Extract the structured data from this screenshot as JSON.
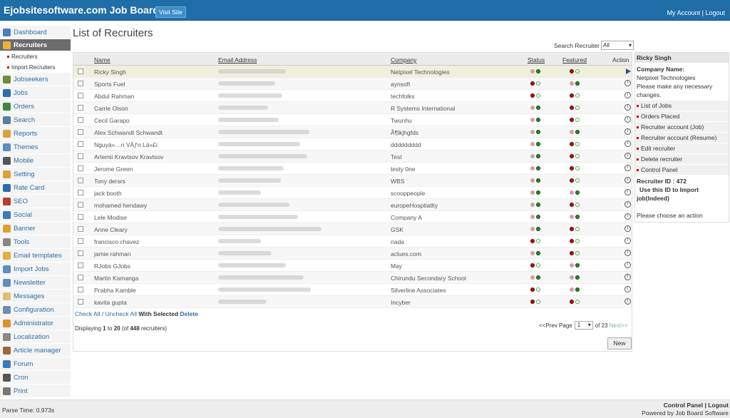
{
  "header": {
    "site_title": "Ejobsitesoftware.com Job Board",
    "visit_site": "Visit Site",
    "my_account": "My Account",
    "separator": "|",
    "logout": "Logout"
  },
  "sidebar": {
    "items": [
      {
        "label": "Dashboard",
        "icon": "home-icon",
        "color": "#4a7fbf"
      },
      {
        "label": "Recruiters",
        "icon": "recruiters-icon",
        "color": "#e8b23c",
        "active": true
      },
      {
        "label": "Jobseekers",
        "icon": "jobseekers-icon",
        "color": "#6b8e3a"
      },
      {
        "label": "Jobs",
        "icon": "jobs-icon",
        "color": "#2c6ea8"
      },
      {
        "label": "Orders",
        "icon": "orders-icon",
        "color": "#3b8a3b"
      },
      {
        "label": "Search",
        "icon": "search-icon",
        "color": "#5a7ea0"
      },
      {
        "label": "Reports",
        "icon": "reports-icon",
        "color": "#d9a23c"
      },
      {
        "label": "Themes",
        "icon": "themes-icon",
        "color": "#5a8fc0"
      },
      {
        "label": "Mobile",
        "icon": "mobile-icon",
        "color": "#555555"
      },
      {
        "label": "Setting",
        "icon": "gear-icon",
        "color": "#e0a030"
      },
      {
        "label": "Rate Card",
        "icon": "dollar-icon",
        "color": "#2c6ea8"
      },
      {
        "label": "SEO",
        "icon": "seo-icon",
        "color": "#c0392b"
      },
      {
        "label": "Social",
        "icon": "social-icon",
        "color": "#3a7bbf"
      },
      {
        "label": "Banner",
        "icon": "banner-icon",
        "color": "#e0a030"
      },
      {
        "label": "Tools",
        "icon": "tools-icon",
        "color": "#888888"
      },
      {
        "label": "Email templates",
        "icon": "email-icon",
        "color": "#e0b040"
      },
      {
        "label": "Import Jobs",
        "icon": "import-icon",
        "color": "#5a8fc0"
      },
      {
        "label": "Newsletter",
        "icon": "newsletter-icon",
        "color": "#5a8fc0"
      },
      {
        "label": "Messages",
        "icon": "messages-icon",
        "color": "#e0c070"
      },
      {
        "label": "Configuration",
        "icon": "configuration-icon",
        "color": "#6c8fb0"
      },
      {
        "label": "Administrator",
        "icon": "administrator-icon",
        "color": "#e09030"
      },
      {
        "label": "Localization",
        "icon": "localization-icon",
        "color": "#888888"
      },
      {
        "label": "Article manager",
        "icon": "article-icon",
        "color": "#9a6a3a"
      },
      {
        "label": "Forum",
        "icon": "forum-icon",
        "color": "#3a7bbf"
      },
      {
        "label": "Cron",
        "icon": "clock-icon",
        "color": "#555555"
      },
      {
        "label": "Print",
        "icon": "print-icon",
        "color": "#777777"
      }
    ],
    "recruiter_sub": [
      "Recruiters",
      "Import Recruiters"
    ]
  },
  "main": {
    "title": "List of Recruiters",
    "search_label": "Search Recruiter",
    "search_value": "All",
    "columns": {
      "name": "Name",
      "email": "Email Address",
      "company": "Company",
      "status": "Status",
      "featured": "Featured",
      "action": "Action"
    },
    "rows": [
      {
        "name": "Ricky Singh",
        "company": "Netpixel Technologies",
        "status": "on",
        "featured": "off",
        "email_w": 95,
        "selected": true
      },
      {
        "name": "Sports Fuel",
        "company": "aynsoft",
        "status": "off",
        "featured": "on",
        "email_w": 80
      },
      {
        "name": "Abdul Rahman",
        "company": "techfolks",
        "status": "off",
        "featured": "off",
        "email_w": 90
      },
      {
        "name": "Carrie Olson",
        "company": "R Systems International",
        "status": "on",
        "featured": "off",
        "email_w": 70
      },
      {
        "name": "Cecil Garapo",
        "company": "Twunhu",
        "status": "on",
        "featured": "off",
        "email_w": 85
      },
      {
        "name": "Alex Schwandt Schwandt",
        "company": "Ã¶lkjhgfds",
        "status": "on",
        "featured": "on",
        "email_w": 128
      },
      {
        "name": "Nguyá»…n VÄƒn Lá»£i",
        "company": "ddddddddd",
        "status": "on",
        "featured": "off",
        "email_w": 115
      },
      {
        "name": "Artemii Kravtsov Kravtsov",
        "company": "Test",
        "status": "on",
        "featured": "off",
        "email_w": 125
      },
      {
        "name": "Jerome Green",
        "company": "testy 0ne",
        "status": "on",
        "featured": "off",
        "email_w": 92
      },
      {
        "name": "Tony dersrs",
        "company": "WBS",
        "status": "on",
        "featured": "off",
        "email_w": 88
      },
      {
        "name": "jack booth",
        "company": "scooppeople",
        "status": "on",
        "featured": "on",
        "email_w": 60
      },
      {
        "name": "mohamed hendawy",
        "company": "europeHosptiatlty",
        "status": "on",
        "featured": "off",
        "email_w": 100
      },
      {
        "name": "Lele Modise",
        "company": "Company A",
        "status": "on",
        "featured": "on",
        "email_w": 112
      },
      {
        "name": "Anne Cleary",
        "company": "GSK",
        "status": "on",
        "featured": "off",
        "email_w": 145
      },
      {
        "name": "francisco chavez",
        "company": "nada",
        "status": "off",
        "featured": "off",
        "email_w": 60
      },
      {
        "name": "jamie rahman",
        "company": "aclues.com",
        "status": "on",
        "featured": "off",
        "email_w": 75
      },
      {
        "name": "RJobs GJobs",
        "company": "May",
        "status": "off",
        "featured": "on",
        "email_w": 95
      },
      {
        "name": "Martin Kamanga",
        "company": "Chirundu Secondary School",
        "status": "on",
        "featured": "on",
        "email_w": 120
      },
      {
        "name": "Prabha Kamble",
        "company": "Silverline Associates",
        "status": "off",
        "featured": "on",
        "email_w": 130
      },
      {
        "name": "kavita gupta",
        "company": "Incyber",
        "status": "off",
        "featured": "off",
        "email_w": 68
      }
    ],
    "check_all": "Check All",
    "slash": "/",
    "uncheck_all": "Uncheck All",
    "with_selected": "With Selected",
    "delete": "Delete",
    "displaying": "Displaying",
    "range_from": "1",
    "to": "to",
    "range_to": "20",
    "of_open": "(of",
    "total": "448",
    "recruiters_close": "recruiters)",
    "prev": "<<Prev",
    "page": "Page",
    "page_value": "1",
    "of_pages": "of 23",
    "next": "Next>>",
    "new_button": "New"
  },
  "panel": {
    "name": "Ricky Singh",
    "company_label": "Company Name:",
    "company": "Netpixel Technologies",
    "note": "Please make any necessary changes.",
    "links": [
      "List of Jobs",
      "Orders Placed",
      "Recruiter account (Job)",
      "Recruiter account (Resume)",
      "Edit recruiter",
      "Delete recruiter",
      "Control Panel"
    ],
    "recruiter_id": "Recruiter ID : 472",
    "import_note": "Use this ID to Import job(Indeed)",
    "choose_action": "Please choose an action"
  },
  "footer": {
    "parse_time": "Parse Time: 0.973s",
    "control_panel": "Control Panel",
    "sep": "|",
    "logout": "Logout",
    "powered_prefix": "Powered by",
    "powered_link": "Job Board Software"
  },
  "colors": {
    "topbar": "#1f6ea8",
    "status_green": "#2a8a1a",
    "status_red": "#b01010",
    "status_off": "#d0a0a0"
  }
}
